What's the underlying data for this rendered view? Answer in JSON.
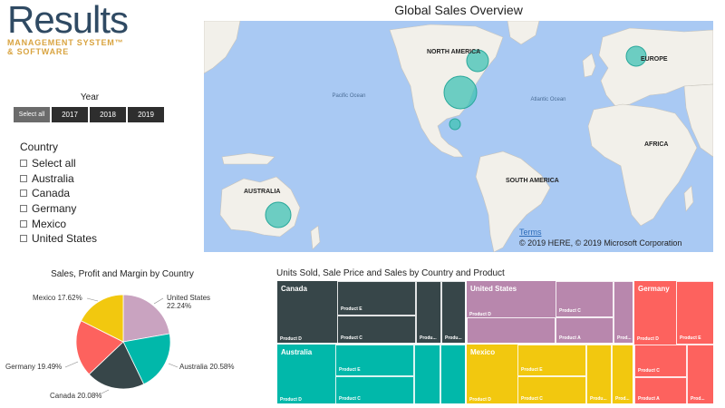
{
  "logo": {
    "word": "Results",
    "line1": "MANAGEMENT SYSTEM™",
    "line2": "& SOFTWARE"
  },
  "year_slicer": {
    "title": "Year",
    "buttons": [
      "Select all",
      "2017",
      "2018",
      "2019"
    ],
    "selected": "Select all"
  },
  "country_slicer": {
    "title": "Country",
    "items": [
      "Select all",
      "Australia",
      "Canada",
      "Germany",
      "Mexico",
      "United States"
    ]
  },
  "map": {
    "title": "Global Sales Overview",
    "ocean_labels": [
      "Pacific Ocean",
      "Atlantic Ocean"
    ],
    "continent_labels": [
      "NORTH AMERICA",
      "EUROPE",
      "AFRICA",
      "SOUTH AMERICA",
      "AUSTRALIA"
    ],
    "terms": "Terms",
    "copyright": "© 2019 HERE, © 2019 Microsoft Corporation",
    "colors": {
      "water": "#a9c9f3",
      "land": "#f2f0ea",
      "bubble": "#3fc2b4"
    }
  },
  "pie": {
    "title": "Sales, Profit and Margin by Country",
    "slice_labels": [
      "United States 22.24%",
      "Australia 20.58%",
      "Canada 20.08%",
      "Germany 19.49%",
      "Mexico 17.62%"
    ]
  },
  "treemap": {
    "title": "Units Sold, Sale Price and Sales by Country and Product",
    "countries": [
      "Canada",
      "United States",
      "Germany",
      "Australia",
      "Mexico"
    ],
    "product_labels": {
      "canada": [
        "Product E",
        "Product D",
        "Product C",
        "Produ...",
        "Produ..."
      ],
      "united_states": [
        "Product D",
        "Product C",
        "Product A",
        "Prod..."
      ],
      "germany": [
        "Product D",
        "Product E",
        "Product C",
        "Product A",
        "Prod..."
      ],
      "australia": [
        "Product E",
        "Product D",
        "Product C"
      ],
      "mexico": [
        "Product E",
        "Product D",
        "Product C",
        "Produ...",
        "Prod..."
      ]
    },
    "colors": {
      "canada": "#374649",
      "united_states": "#b887ad",
      "germany": "#fd625e",
      "australia": "#01b8aa",
      "mexico": "#f2c80f"
    }
  },
  "chart_data": [
    {
      "type": "pie",
      "title": "Sales, Profit and Margin by Country",
      "categories": [
        "United States",
        "Australia",
        "Canada",
        "Germany",
        "Mexico"
      ],
      "values": [
        22.24,
        20.58,
        20.08,
        19.49,
        17.62
      ],
      "colors": [
        "#c9a3c0",
        "#01b8aa",
        "#374649",
        "#fd625e",
        "#f2c80f"
      ]
    }
  ]
}
